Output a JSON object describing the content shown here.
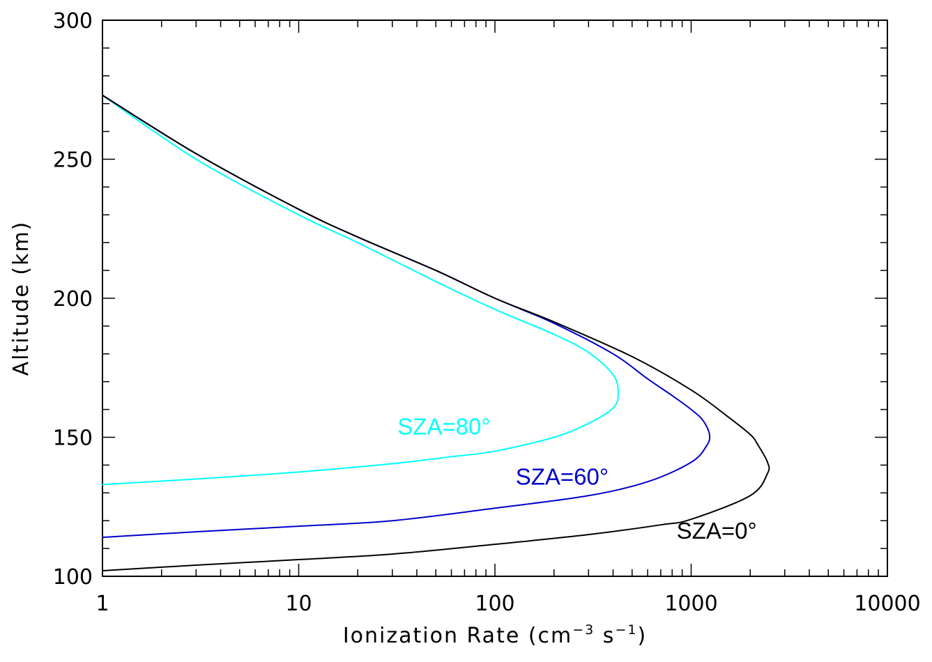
{
  "chart_data": {
    "type": "line",
    "title": "",
    "xlabel": {
      "text": "Ionization Rate (cm",
      "sup1": "−3",
      "mid": " s",
      "sup2": "−1",
      "end": ")"
    },
    "ylabel": "Altitude (km)",
    "xscale": "log",
    "xlim": [
      1,
      10000
    ],
    "ylim": [
      100,
      300
    ],
    "xticks": [
      1,
      10,
      100,
      1000,
      10000
    ],
    "xtick_labels": [
      "1",
      "10",
      "100",
      "1000",
      "10000"
    ],
    "yticks": [
      100,
      150,
      200,
      250,
      300
    ],
    "ytick_labels": [
      "100",
      "150",
      "200",
      "250",
      "300"
    ],
    "grid": false,
    "legend": "none (inline labels)",
    "series": [
      {
        "name": "SZA=80°",
        "color": "#00ffff",
        "label_at": {
          "x": 55,
          "y": 151
        },
        "points": [
          [
            1,
            133
          ],
          [
            3,
            135
          ],
          [
            10,
            137.5
          ],
          [
            30,
            140.5
          ],
          [
            60,
            143
          ],
          [
            100,
            145
          ],
          [
            200,
            150
          ],
          [
            300,
            155
          ],
          [
            400,
            160.5
          ],
          [
            425,
            166
          ],
          [
            400,
            172.5
          ],
          [
            300,
            180.5
          ],
          [
            200,
            187
          ],
          [
            100,
            196
          ],
          [
            50,
            206
          ],
          [
            20,
            220
          ],
          [
            10,
            230
          ],
          [
            3,
            250
          ],
          [
            1,
            273
          ]
        ]
      },
      {
        "name": "SZA=60°",
        "color": "#0000cd",
        "label_at": {
          "x": 220,
          "y": 133
        },
        "points": [
          [
            1,
            114
          ],
          [
            3,
            116
          ],
          [
            10,
            118
          ],
          [
            30,
            120
          ],
          [
            100,
            124.5
          ],
          [
            300,
            129
          ],
          [
            600,
            134
          ],
          [
            1000,
            141
          ],
          [
            1200,
            147
          ],
          [
            1240,
            151
          ],
          [
            1150,
            156
          ],
          [
            1000,
            160
          ],
          [
            800,
            165
          ],
          [
            600,
            171
          ],
          [
            400,
            180
          ],
          [
            200,
            191
          ],
          [
            100,
            200
          ],
          [
            50,
            210
          ],
          [
            20,
            222
          ],
          [
            10,
            232
          ],
          [
            3,
            252
          ],
          [
            1,
            273
          ]
        ]
      },
      {
        "name": "SZA=0°",
        "color": "#000000",
        "label_at": {
          "x": 1350,
          "y": 113.5
        },
        "points": [
          [
            1,
            102
          ],
          [
            3,
            104
          ],
          [
            10,
            106
          ],
          [
            30,
            108
          ],
          [
            100,
            111.5
          ],
          [
            300,
            115
          ],
          [
            700,
            118.5
          ],
          [
            1000,
            120.5
          ],
          [
            2000,
            129
          ],
          [
            2450,
            137
          ],
          [
            2450,
            141
          ],
          [
            2200,
            147
          ],
          [
            2000,
            151
          ],
          [
            1500,
            158
          ],
          [
            1000,
            167
          ],
          [
            500,
            179
          ],
          [
            200,
            191.5
          ],
          [
            100,
            200
          ],
          [
            50,
            210
          ],
          [
            20,
            222
          ],
          [
            10,
            232
          ],
          [
            3,
            252
          ],
          [
            1,
            273
          ]
        ]
      }
    ]
  }
}
